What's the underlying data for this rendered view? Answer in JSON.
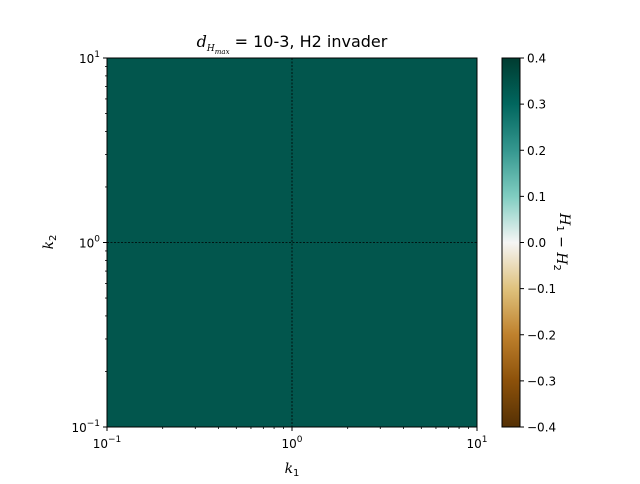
{
  "chart_data": [
    {
      "type": "heatmap",
      "title": {
        "symbol": "d",
        "subscript": "H",
        "subsubscript": "max",
        "rest": " = 10-3, H2 invader"
      },
      "xlabel": {
        "symbol": "k",
        "subscript": "1"
      },
      "ylabel": {
        "symbol": "k",
        "subscript": "2"
      },
      "x_scale": "log",
      "y_scale": "log",
      "xlim": [
        0.1,
        10
      ],
      "ylim": [
        0.1,
        10
      ],
      "x_ticks": [
        {
          "value": 0.1,
          "base": "10",
          "exp": "−1"
        },
        {
          "value": 1,
          "base": "10",
          "exp": "0"
        },
        {
          "value": 10,
          "base": "10",
          "exp": "1"
        }
      ],
      "y_ticks": [
        {
          "value": 0.1,
          "base": "10",
          "exp": "−1"
        },
        {
          "value": 1,
          "base": "10",
          "exp": "0"
        },
        {
          "value": 10,
          "base": "10",
          "exp": "1"
        }
      ],
      "reference_lines": {
        "x": 1,
        "y": 1,
        "style": "dashed",
        "color": "#000000"
      },
      "cells": [
        {
          "x_range": [
            0.1,
            10
          ],
          "y_range": [
            0.1,
            10
          ],
          "value": 0.35
        }
      ],
      "colormap": "BrBG",
      "colorbar": {
        "label": "H1 − H2",
        "label_parts": [
          {
            "text": "H",
            "sub": "1"
          },
          {
            "text": " − "
          },
          {
            "text": "H",
            "sub": "2"
          }
        ],
        "range": [
          -0.4,
          0.4
        ],
        "ticks": [
          "−0.4",
          "−0.3",
          "−0.2",
          "−0.1",
          "0.0",
          "0.1",
          "0.2",
          "0.3",
          "0.4"
        ],
        "tick_values": [
          -0.4,
          -0.3,
          -0.2,
          -0.1,
          0,
          0.1,
          0.2,
          0.3,
          0.4
        ]
      },
      "grid": false,
      "colors": {
        "cell_fill": "#02564d",
        "bar_low": "#543005",
        "bar_mid": "#f5f5f5",
        "bar_high": "#003c30"
      }
    }
  ]
}
